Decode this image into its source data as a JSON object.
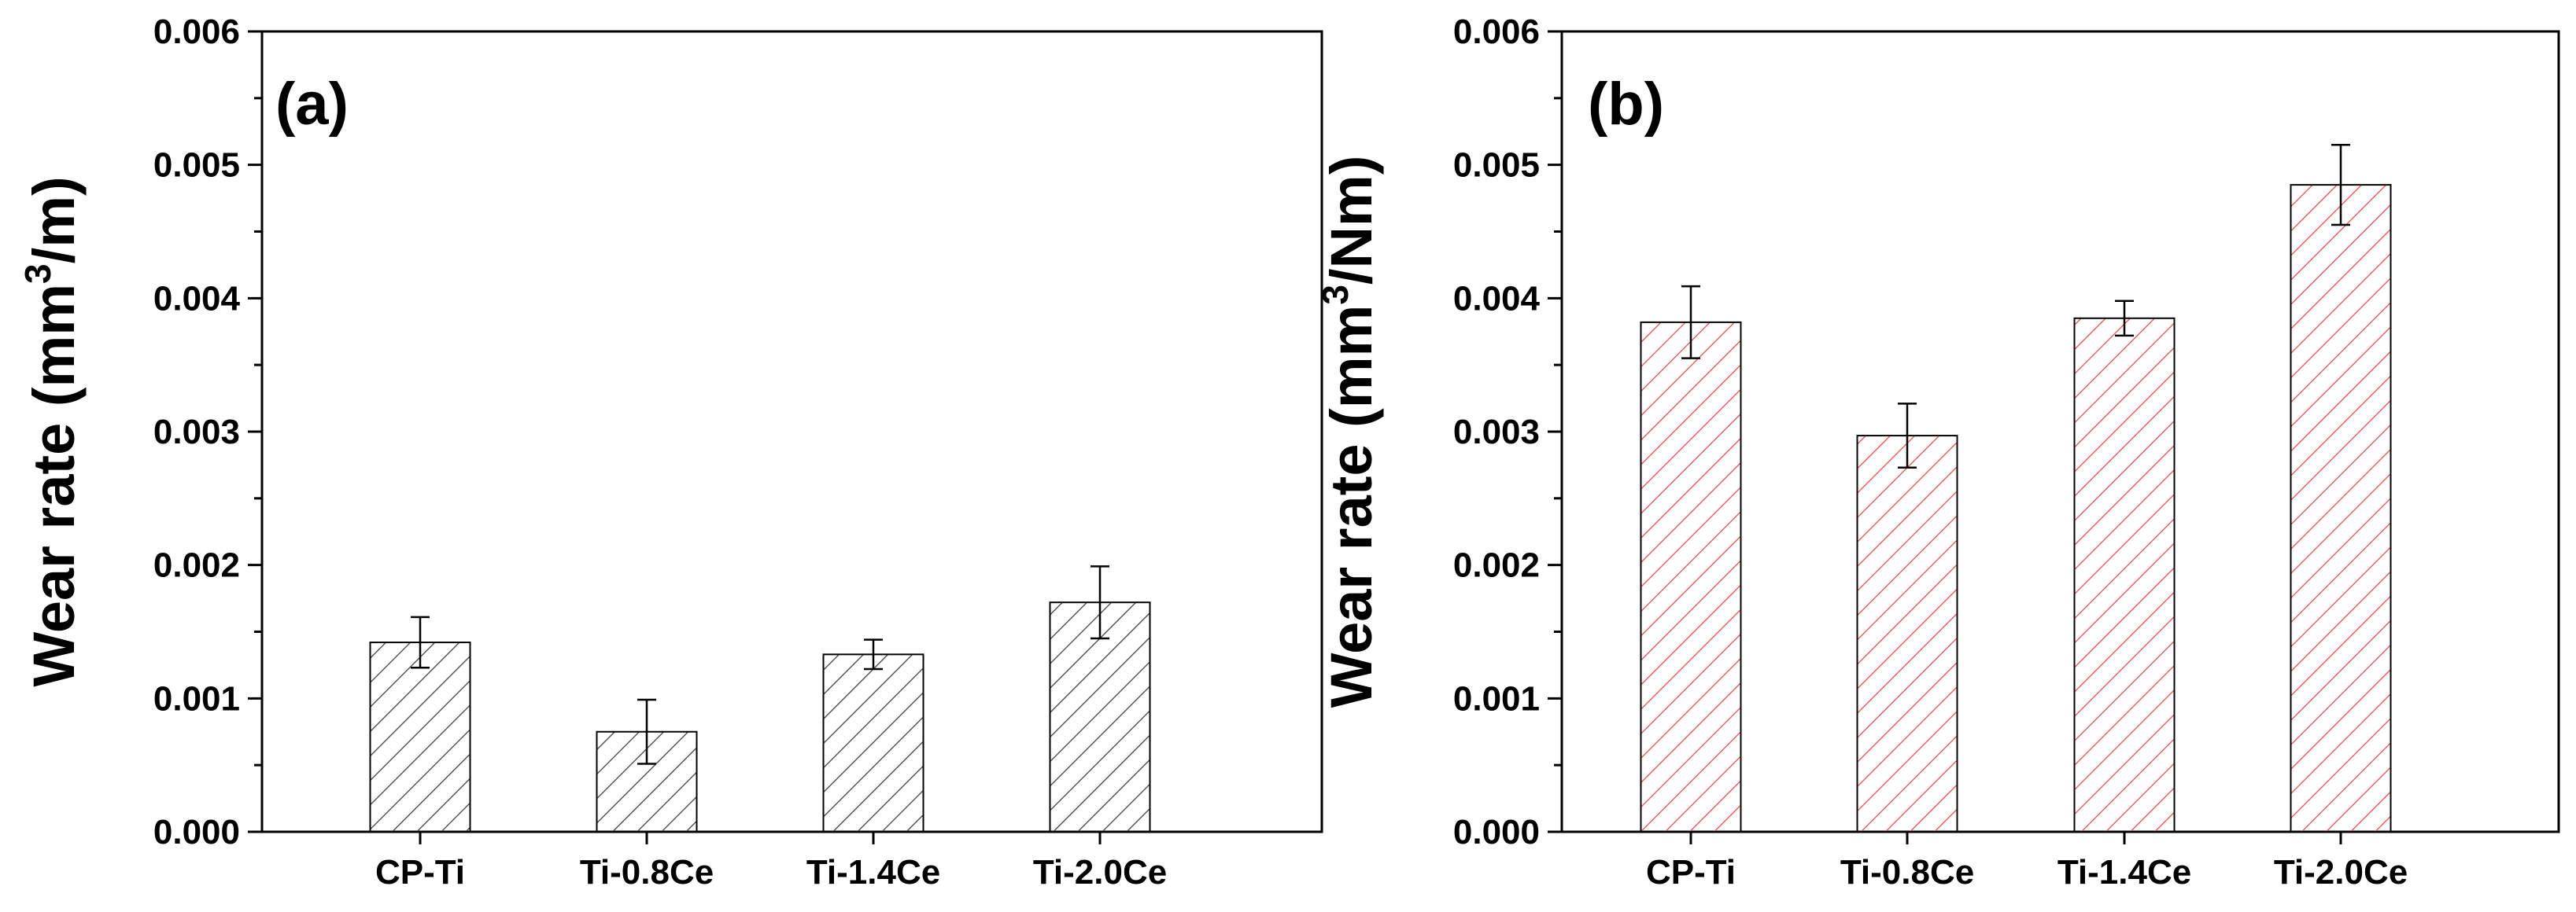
{
  "chart_data": [
    {
      "type": "bar",
      "panel_label": "(a)",
      "categories": [
        "CP-Ti",
        "Ti-0.8Ce",
        "Ti-1.4Ce",
        "Ti-2.0Ce"
      ],
      "values": [
        0.00142,
        0.00075,
        0.00133,
        0.00172
      ],
      "errors": [
        0.00019,
        0.00024,
        0.00011,
        0.00027
      ],
      "ylabel_prefix": "Wear rate (mm",
      "ylabel_sup": "3",
      "ylabel_suffix": "/m)",
      "ylim": [
        0,
        0.006
      ],
      "yticks": [
        "0.000",
        "0.001",
        "0.002",
        "0.003",
        "0.004",
        "0.005",
        "0.006"
      ],
      "hatch_color": "#3a3a3a",
      "legend": "none",
      "grid": false
    },
    {
      "type": "bar",
      "panel_label": "(b)",
      "categories": [
        "CP-Ti",
        "Ti-0.8Ce",
        "Ti-1.4Ce",
        "Ti-2.0Ce"
      ],
      "values": [
        0.00382,
        0.00297,
        0.00385,
        0.00485
      ],
      "errors": [
        0.00027,
        0.00024,
        0.00013,
        0.0003
      ],
      "ylabel_prefix": "Wear rate (mm",
      "ylabel_sup": "3",
      "ylabel_suffix": "/Nm)",
      "ylim": [
        0,
        0.006
      ],
      "yticks": [
        "0.000",
        "0.001",
        "0.002",
        "0.003",
        "0.004",
        "0.005",
        "0.006"
      ],
      "hatch_color": "#e8474b",
      "legend": "none",
      "grid": false
    }
  ]
}
